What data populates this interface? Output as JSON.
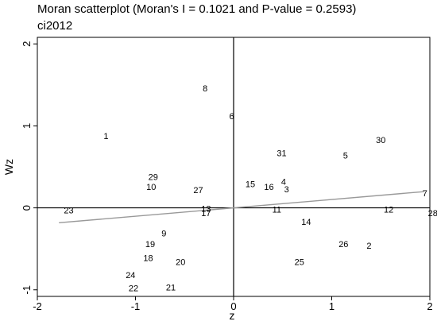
{
  "chart_data": {
    "type": "scatter",
    "title": "Moran scatterplot (Moran's I = 0.1021 and P-value = 0.2593)",
    "subtitle": "ci2012",
    "xlabel": "z",
    "ylabel": "Wz",
    "xlim": [
      -2.0,
      2.0
    ],
    "ylim": [
      -1.08,
      2.08
    ],
    "xticks": [
      -2,
      -1,
      0,
      1,
      2
    ],
    "yticks": [
      -1,
      0,
      1,
      2
    ],
    "points": [
      {
        "label": "1",
        "x": -1.3,
        "y": 0.88
      },
      {
        "label": "2",
        "x": 1.38,
        "y": -0.46
      },
      {
        "label": "3",
        "x": 0.54,
        "y": 0.23
      },
      {
        "label": "4",
        "x": 0.51,
        "y": 0.32
      },
      {
        "label": "5",
        "x": 1.14,
        "y": 0.64
      },
      {
        "label": "6",
        "x": -0.02,
        "y": 1.12
      },
      {
        "label": "7",
        "x": 1.95,
        "y": 0.18
      },
      {
        "label": "8",
        "x": -0.29,
        "y": 1.46
      },
      {
        "label": "9",
        "x": -0.71,
        "y": -0.31
      },
      {
        "label": "10",
        "x": -0.84,
        "y": 0.26
      },
      {
        "label": "11",
        "x": 0.44,
        "y": -0.02
      },
      {
        "label": "12",
        "x": 1.58,
        "y": -0.02
      },
      {
        "label": "13",
        "x": -0.28,
        "y": -0.01
      },
      {
        "label": "14",
        "x": 0.74,
        "y": -0.17
      },
      {
        "label": "15",
        "x": 0.17,
        "y": 0.29
      },
      {
        "label": "16",
        "x": 0.36,
        "y": 0.26
      },
      {
        "label": "17",
        "x": -0.28,
        "y": -0.06
      },
      {
        "label": "18",
        "x": -0.87,
        "y": -0.61
      },
      {
        "label": "19",
        "x": -0.85,
        "y": -0.44
      },
      {
        "label": "20",
        "x": -0.54,
        "y": -0.66
      },
      {
        "label": "21",
        "x": -0.64,
        "y": -0.97
      },
      {
        "label": "22",
        "x": -1.02,
        "y": -0.98
      },
      {
        "label": "23",
        "x": -1.68,
        "y": -0.03
      },
      {
        "label": "24",
        "x": -1.05,
        "y": -0.82
      },
      {
        "label": "25",
        "x": 0.67,
        "y": -0.66
      },
      {
        "label": "26",
        "x": 1.12,
        "y": -0.44
      },
      {
        "label": "27",
        "x": -0.36,
        "y": 0.22
      },
      {
        "label": "28",
        "x": 2.03,
        "y": -0.06
      },
      {
        "label": "29",
        "x": -0.82,
        "y": 0.38
      },
      {
        "label": "30",
        "x": 1.5,
        "y": 0.83
      },
      {
        "label": "31",
        "x": 0.49,
        "y": 0.67
      }
    ],
    "regression_line": {
      "slope": 0.1021,
      "x_range": [
        -1.78,
        1.94
      ],
      "color": "#999999"
    },
    "reference_lines": {
      "x": 0,
      "y": 0
    },
    "grid": false,
    "legend": "none"
  }
}
